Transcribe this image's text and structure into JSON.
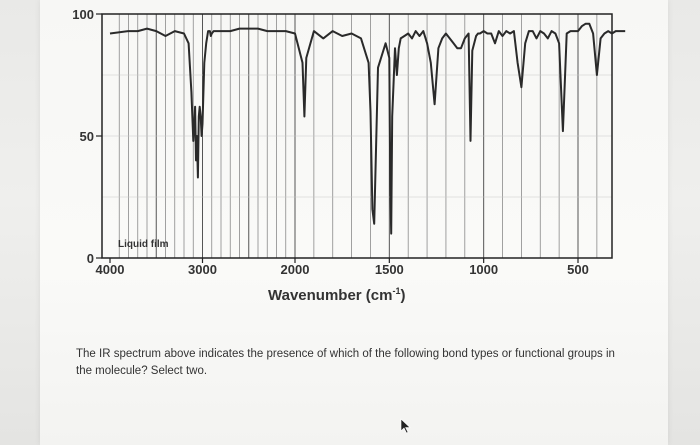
{
  "chart_data": {
    "type": "line",
    "xlabel": "Wavenumber (cm",
    "xlabel_sup": "-1",
    "xlabel_close": ")",
    "xlim": [
      4000,
      250
    ],
    "ylim": [
      0,
      100
    ],
    "y_ticks": [
      "100",
      "50",
      "0"
    ],
    "x_ticks": [
      "4000",
      "3000",
      "2000",
      "1500",
      "1000",
      "500"
    ],
    "annotation": "Liquid film",
    "grid": true,
    "series": [
      {
        "x": [
          4000,
          3800,
          3700,
          3600,
          3500,
          3400,
          3300,
          3200,
          3150,
          3120,
          3100,
          3080,
          3070,
          3060,
          3050,
          3040,
          3030,
          3020,
          3010,
          3000,
          2980,
          2960,
          2940,
          2930,
          2920,
          2910,
          2900,
          2880,
          2860,
          2800,
          2700,
          2600,
          2500,
          2400,
          2300,
          2200,
          2100,
          2000,
          1960,
          1950,
          1940,
          1900,
          1850,
          1800,
          1750,
          1700,
          1650,
          1610,
          1600,
          1590,
          1580,
          1560,
          1520,
          1500,
          1495,
          1490,
          1485,
          1470,
          1460,
          1450,
          1440,
          1420,
          1400,
          1380,
          1360,
          1340,
          1320,
          1300,
          1280,
          1260,
          1240,
          1220,
          1200,
          1180,
          1160,
          1140,
          1120,
          1100,
          1080,
          1070,
          1060,
          1040,
          1030,
          1020,
          1000,
          980,
          960,
          940,
          920,
          900,
          880,
          860,
          840,
          820,
          800,
          780,
          760,
          740,
          720,
          700,
          680,
          660,
          640,
          620,
          600,
          580,
          560,
          540,
          520,
          500,
          480,
          460,
          440,
          420,
          400,
          380,
          360,
          340,
          320,
          300,
          280,
          260,
          250
        ],
        "y": [
          92,
          93,
          93,
          94,
          93,
          91,
          93,
          92,
          88,
          68,
          48,
          62,
          40,
          50,
          33,
          58,
          62,
          58,
          50,
          55,
          80,
          88,
          93,
          93,
          93,
          91,
          92,
          93,
          93,
          93,
          93,
          94,
          94,
          94,
          93,
          93,
          93,
          92,
          80,
          58,
          82,
          93,
          90,
          93,
          91,
          92,
          90,
          80,
          60,
          20,
          14,
          78,
          88,
          82,
          30,
          10,
          58,
          86,
          75,
          86,
          90,
          91,
          92,
          90,
          93,
          91,
          93,
          88,
          80,
          63,
          86,
          90,
          92,
          90,
          88,
          86,
          86,
          90,
          92,
          48,
          85,
          91,
          92,
          92,
          93,
          92,
          92,
          88,
          93,
          91,
          93,
          92,
          93,
          80,
          70,
          88,
          93,
          93,
          90,
          93,
          92,
          90,
          93,
          92,
          88,
          52,
          92,
          93,
          93,
          93,
          95,
          96,
          96,
          92,
          75,
          90,
          92,
          93,
          92,
          93,
          93,
          93,
          93
        ]
      }
    ]
  },
  "question": {
    "text": "The IR spectrum above indicates the presence of which of the following bond types or functional groups in the molecule? Select two."
  },
  "cursor": {
    "icon": "mouse-pointer-icon"
  }
}
